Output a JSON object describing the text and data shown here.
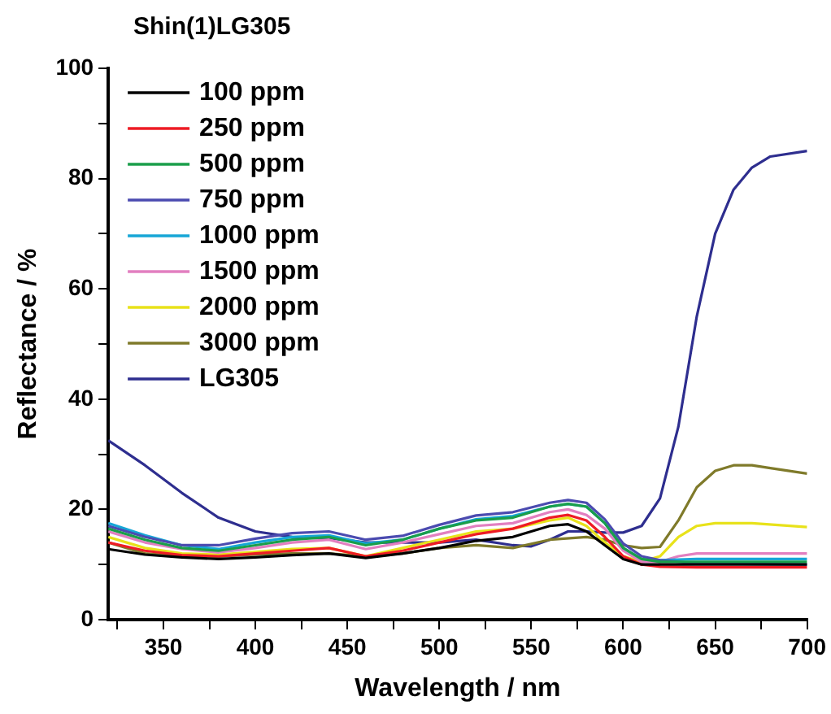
{
  "chart_data": {
    "type": "line",
    "title": "Shin(1)LG305",
    "xlabel": "Wavelength / nm",
    "ylabel": "Reflectance / %",
    "xlim": [
      320,
      700
    ],
    "ylim": [
      0,
      100
    ],
    "xticks": [
      {
        "value": 325,
        "label": null
      },
      350,
      {
        "value": 375,
        "label": null
      },
      400,
      {
        "value": 425,
        "label": null
      },
      450,
      {
        "value": 475,
        "label": null
      },
      500,
      {
        "value": 525,
        "label": null
      },
      550,
      {
        "value": 575,
        "label": null
      },
      600,
      {
        "value": 625,
        "label": null
      },
      650,
      {
        "value": 675,
        "label": null
      },
      700
    ],
    "yticks": [
      0,
      {
        "value": 10,
        "label": null
      },
      20,
      {
        "value": 30,
        "label": null
      },
      40,
      {
        "value": 50,
        "label": null
      },
      60,
      {
        "value": 70,
        "label": null
      },
      80,
      {
        "value": 90,
        "label": null
      },
      100
    ],
    "grid": false,
    "legend": "top left",
    "marker": "none",
    "line_style": "solid",
    "series": [
      {
        "name": "100 ppm",
        "color": "#000000",
        "x": [
          320,
          340,
          360,
          380,
          400,
          420,
          440,
          460,
          480,
          500,
          520,
          540,
          560,
          570,
          580,
          590,
          600,
          610,
          620,
          640,
          700
        ],
        "values": [
          12.8,
          11.8,
          11.3,
          11,
          11.3,
          11.7,
          12,
          11.2,
          12,
          13,
          14.3,
          15,
          17,
          17.3,
          16,
          13.5,
          11,
          10,
          10,
          10,
          10
        ]
      },
      {
        "name": "250 ppm",
        "color": "#ee1c25",
        "x": [
          320,
          340,
          360,
          380,
          400,
          420,
          440,
          460,
          480,
          500,
          520,
          540,
          560,
          570,
          580,
          590,
          600,
          610,
          620,
          640,
          700
        ],
        "values": [
          14,
          12.5,
          11.7,
          11.5,
          12,
          12.5,
          13,
          11.5,
          12.5,
          14,
          15.5,
          16.5,
          18.5,
          19,
          18,
          15,
          11.5,
          10,
          9.6,
          9.5,
          9.5
        ]
      },
      {
        "name": "500 ppm",
        "color": "#1a9e4a",
        "x": [
          320,
          340,
          360,
          380,
          400,
          420,
          440,
          460,
          480,
          500,
          520,
          540,
          560,
          570,
          580,
          590,
          600,
          610,
          620,
          640,
          700
        ],
        "values": [
          16.5,
          14.5,
          13,
          12.5,
          13.5,
          14.5,
          15,
          13.5,
          14.5,
          16.5,
          18,
          18.5,
          20.5,
          21,
          20.5,
          17.5,
          13,
          11,
          10.5,
          10.5,
          10.5
        ]
      },
      {
        "name": "750 ppm",
        "color": "#4b4bb0",
        "x": [
          320,
          340,
          360,
          380,
          400,
          420,
          440,
          460,
          480,
          500,
          520,
          540,
          560,
          570,
          580,
          590,
          600,
          610,
          620,
          640,
          700
        ],
        "values": [
          17,
          15,
          13.5,
          13.5,
          14.7,
          15.7,
          16,
          14.5,
          15.2,
          17.2,
          18.9,
          19.5,
          21.2,
          21.7,
          21.2,
          18.2,
          13.8,
          11.5,
          10.8,
          10.2,
          10
        ]
      },
      {
        "name": "1000 ppm",
        "color": "#16a6d6",
        "x": [
          320,
          340,
          360,
          380,
          400,
          420,
          440,
          460,
          480,
          500,
          520,
          540,
          560,
          570,
          580,
          590,
          600,
          610,
          620,
          640,
          700
        ],
        "values": [
          17.5,
          15.3,
          13.5,
          12.8,
          14,
          15,
          15.3,
          13.8,
          14.5,
          16.5,
          18.2,
          18.8,
          20.5,
          21,
          20.5,
          17.5,
          13,
          11,
          10.8,
          11,
          11
        ]
      },
      {
        "name": "1500 ppm",
        "color": "#e27fc0",
        "x": [
          320,
          340,
          360,
          380,
          400,
          420,
          440,
          460,
          480,
          500,
          520,
          540,
          560,
          570,
          580,
          590,
          600,
          610,
          620,
          630,
          640,
          700
        ],
        "values": [
          16,
          14,
          12.8,
          12.2,
          13,
          14,
          14.5,
          12.8,
          14,
          15.5,
          17,
          17.5,
          19.5,
          20,
          19,
          16.5,
          12.5,
          10.5,
          10.5,
          11.5,
          12,
          12
        ]
      },
      {
        "name": "2000 ppm",
        "color": "#e8e21a",
        "x": [
          320,
          340,
          360,
          380,
          400,
          420,
          440,
          460,
          480,
          500,
          520,
          540,
          560,
          570,
          580,
          590,
          600,
          610,
          620,
          630,
          640,
          650,
          670,
          700
        ],
        "values": [
          15,
          13,
          12,
          11.8,
          12.3,
          12.8,
          13,
          11.5,
          13,
          14.5,
          16,
          16.5,
          18,
          18.5,
          17,
          14,
          11.5,
          10.5,
          11.5,
          15,
          17,
          17.5,
          17.5,
          16.8
        ]
      },
      {
        "name": "3000 ppm",
        "color": "#7f7a2a",
        "x": [
          320,
          340,
          360,
          380,
          400,
          420,
          440,
          460,
          480,
          500,
          520,
          540,
          560,
          580,
          590,
          600,
          610,
          620,
          630,
          640,
          650,
          660,
          670,
          680,
          700
        ],
        "values": [
          14,
          12,
          11.5,
          11.5,
          11.8,
          12,
          12,
          11.5,
          12,
          13,
          13.5,
          13,
          14.5,
          15,
          14.5,
          13.5,
          13,
          13.2,
          18,
          24,
          27,
          28,
          28,
          27.5,
          26.5
        ]
      },
      {
        "name": "LG305",
        "color": "#2e2e8f",
        "x": [
          320,
          340,
          360,
          380,
          400,
          420,
          440,
          460,
          480,
          500,
          520,
          540,
          550,
          560,
          570,
          580,
          590,
          600,
          610,
          620,
          630,
          640,
          650,
          660,
          670,
          680,
          700
        ],
        "values": [
          32.5,
          28,
          23,
          18.5,
          16,
          15,
          14.8,
          14,
          14,
          14,
          14.5,
          13.5,
          13.3,
          14.5,
          16,
          16,
          15.8,
          15.8,
          17,
          22,
          35,
          55,
          70,
          78,
          82,
          84,
          85
        ]
      }
    ]
  }
}
